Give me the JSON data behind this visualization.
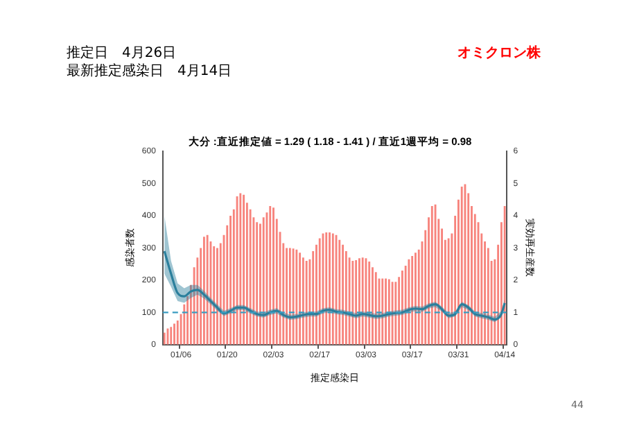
{
  "chart_data": {
    "type": "bar",
    "title": "大分 :直近推定値 = 1.29 ( 1.18 - 1.41 ) / 直近1週平均 = 0.98",
    "xlabel": "推定感染日",
    "ylabel": "感染者数",
    "y2label": "実効再生産数",
    "categories": [
      null,
      null,
      null,
      null,
      null,
      "01/06",
      null,
      null,
      null,
      null,
      null,
      null,
      null,
      null,
      null,
      null,
      null,
      null,
      null,
      "01/20",
      null,
      null,
      null,
      null,
      null,
      null,
      null,
      null,
      null,
      null,
      null,
      null,
      null,
      "02/03",
      null,
      null,
      null,
      null,
      null,
      null,
      null,
      null,
      null,
      null,
      null,
      null,
      null,
      "02/17",
      null,
      null,
      null,
      null,
      null,
      null,
      null,
      null,
      null,
      null,
      null,
      null,
      null,
      "03/03",
      null,
      null,
      null,
      null,
      null,
      null,
      null,
      null,
      null,
      null,
      null,
      null,
      null,
      "03/17",
      null,
      null,
      null,
      null,
      null,
      null,
      null,
      null,
      null,
      null,
      null,
      null,
      null,
      "03/31",
      null,
      null,
      null,
      null,
      null,
      null,
      null,
      null,
      null,
      null,
      null,
      null,
      null,
      "04/14"
    ],
    "series": [
      {
        "color": "#f7837c",
        "values": [
          37,
          50,
          55,
          65,
          75,
          95,
          125,
          150,
          185,
          240,
          270,
          300,
          335,
          340,
          320,
          305,
          300,
          315,
          340,
          370,
          400,
          420,
          460,
          470,
          465,
          440,
          420,
          395,
          380,
          375,
          395,
          410,
          430,
          425,
          390,
          350,
          315,
          300,
          300,
          298,
          295,
          285,
          270,
          260,
          265,
          290,
          310,
          330,
          345,
          348,
          348,
          345,
          340,
          325,
          310,
          290,
          270,
          260,
          262,
          268,
          270,
          268,
          258,
          240,
          225,
          205,
          205,
          205,
          203,
          195,
          195,
          210,
          230,
          245,
          265,
          275,
          285,
          295,
          320,
          355,
          395,
          430,
          435,
          390,
          360,
          325,
          330,
          345,
          400,
          450,
          490,
          498,
          470,
          430,
          405,
          380,
          345,
          320,
          300,
          260,
          265,
          310,
          380,
          430
        ]
      },
      {
        "type": "line",
        "axis": "y2",
        "color": "#2b7f9c",
        "values": [
          2.9,
          null,
          2.2,
          null,
          1.6,
          null,
          1.5,
          null,
          1.65,
          null,
          1.7,
          null,
          1.55,
          null,
          1.35,
          null,
          1.15,
          null,
          0.97,
          null,
          1.05,
          null,
          1.15,
          null,
          1.15,
          null,
          1.05,
          null,
          0.95,
          null,
          0.92,
          null,
          1.0,
          null,
          1.05,
          null,
          0.92,
          null,
          0.85,
          null,
          0.87,
          null,
          0.92,
          null,
          0.95,
          null,
          0.95,
          null,
          1.05,
          null,
          1.08,
          null,
          1.02,
          null,
          1.0,
          null,
          0.95,
          null,
          0.9,
          null,
          0.95,
          null,
          0.92,
          null,
          0.88,
          null,
          0.9,
          null,
          0.95,
          null,
          0.98,
          null,
          1.0,
          null,
          1.08,
          null,
          1.12,
          null,
          1.1,
          null,
          1.2,
          null,
          1.25,
          null,
          1.1,
          null,
          0.9,
          null,
          0.95,
          null,
          1.25,
          null,
          1.15,
          null,
          0.95,
          null,
          0.9,
          null,
          0.85,
          null,
          0.78,
          null,
          0.95,
          1.29
        ],
        "lower": [
          2.2,
          null,
          1.8,
          null,
          1.35,
          null,
          1.3,
          null,
          1.45,
          null,
          1.55,
          null,
          1.43,
          null,
          1.25,
          null,
          1.05,
          null,
          0.89,
          null,
          0.97,
          null,
          1.07,
          null,
          1.07,
          null,
          0.97,
          null,
          0.87,
          null,
          0.84,
          null,
          0.92,
          null,
          0.97,
          null,
          0.84,
          null,
          0.77,
          null,
          0.79,
          null,
          0.84,
          null,
          0.87,
          null,
          0.87,
          null,
          0.97,
          null,
          1.0,
          null,
          0.94,
          null,
          0.92,
          null,
          0.87,
          null,
          0.82,
          null,
          0.87,
          null,
          0.84,
          null,
          0.8,
          null,
          0.82,
          null,
          0.87,
          null,
          0.9,
          null,
          0.92,
          null,
          1.0,
          null,
          1.04,
          null,
          1.02,
          null,
          1.12,
          null,
          1.17,
          null,
          1.02,
          null,
          0.82,
          null,
          0.87,
          null,
          1.17,
          null,
          1.07,
          null,
          0.87,
          null,
          0.82,
          null,
          0.77,
          null,
          0.7,
          null,
          0.85,
          1.18
        ],
        "upper": [
          4.0,
          null,
          2.6,
          null,
          1.9,
          null,
          1.75,
          null,
          1.85,
          null,
          1.85,
          null,
          1.67,
          null,
          1.45,
          null,
          1.25,
          null,
          1.05,
          null,
          1.13,
          null,
          1.23,
          null,
          1.23,
          null,
          1.13,
          null,
          1.03,
          null,
          1.0,
          null,
          1.08,
          null,
          1.13,
          null,
          1.0,
          null,
          0.93,
          null,
          0.95,
          null,
          1.0,
          null,
          1.03,
          null,
          1.03,
          null,
          1.13,
          null,
          1.16,
          null,
          1.1,
          null,
          1.08,
          null,
          1.03,
          null,
          0.98,
          null,
          1.03,
          null,
          1.0,
          null,
          0.96,
          null,
          0.98,
          null,
          1.03,
          null,
          1.06,
          null,
          1.08,
          null,
          1.16,
          null,
          1.2,
          null,
          1.18,
          null,
          1.28,
          null,
          1.33,
          null,
          1.18,
          null,
          0.98,
          null,
          1.03,
          null,
          1.33,
          null,
          1.23,
          null,
          1.03,
          null,
          0.98,
          null,
          0.93,
          null,
          0.86,
          null,
          1.05,
          1.41
        ]
      }
    ],
    "ylim": [
      0,
      600
    ],
    "yticks": [
      0,
      100,
      200,
      300,
      400,
      500,
      600
    ],
    "y2lim": [
      0,
      6
    ],
    "y2ticks": [
      0,
      1,
      2,
      3,
      4,
      5,
      6
    ],
    "ref_lines": [
      {
        "axis": "y2",
        "value": 1,
        "color": "#3a9cc0",
        "line_style": "dashed"
      }
    ],
    "annotations": [
      "推定日　4月26日",
      "最新推定感染日　4月14日",
      "オミクロン株",
      "44"
    ]
  }
}
